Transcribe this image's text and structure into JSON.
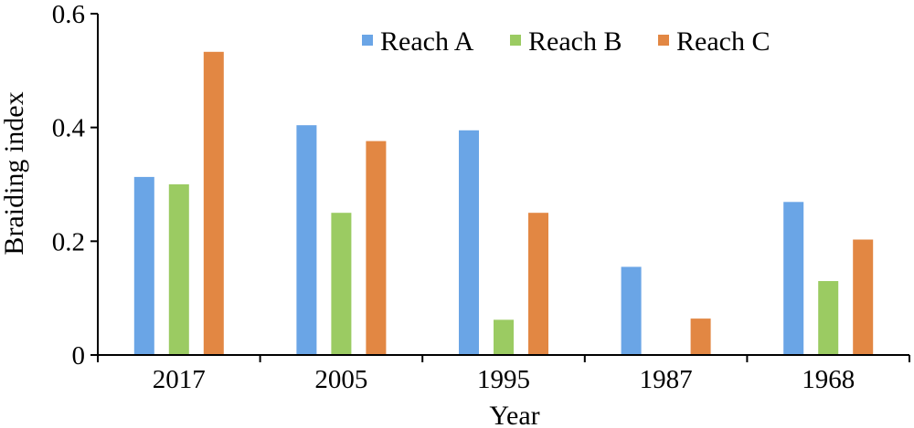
{
  "chart_data": {
    "type": "bar",
    "title": "",
    "xlabel": "Year",
    "ylabel": "Braiding index",
    "categories": [
      "2017",
      "2005",
      "1995",
      "1987",
      "1968"
    ],
    "ylim": [
      0,
      0.6
    ],
    "yticks": [
      0,
      0.2,
      0.4,
      0.6
    ],
    "ytick_labels": [
      "0",
      "0.2",
      "0.4",
      "0.6"
    ],
    "grid": false,
    "legend_position": "top-right",
    "series": [
      {
        "name": "Reach A",
        "color": "#6AA5E6",
        "values": [
          0.313,
          0.404,
          0.395,
          0.155,
          0.269
        ]
      },
      {
        "name": "Reach B",
        "color": "#9BCB62",
        "values": [
          0.3,
          0.25,
          0.062,
          0.0,
          0.13
        ]
      },
      {
        "name": "Reach C",
        "color": "#E28743",
        "values": [
          0.533,
          0.376,
          0.25,
          0.064,
          0.203
        ]
      }
    ]
  }
}
